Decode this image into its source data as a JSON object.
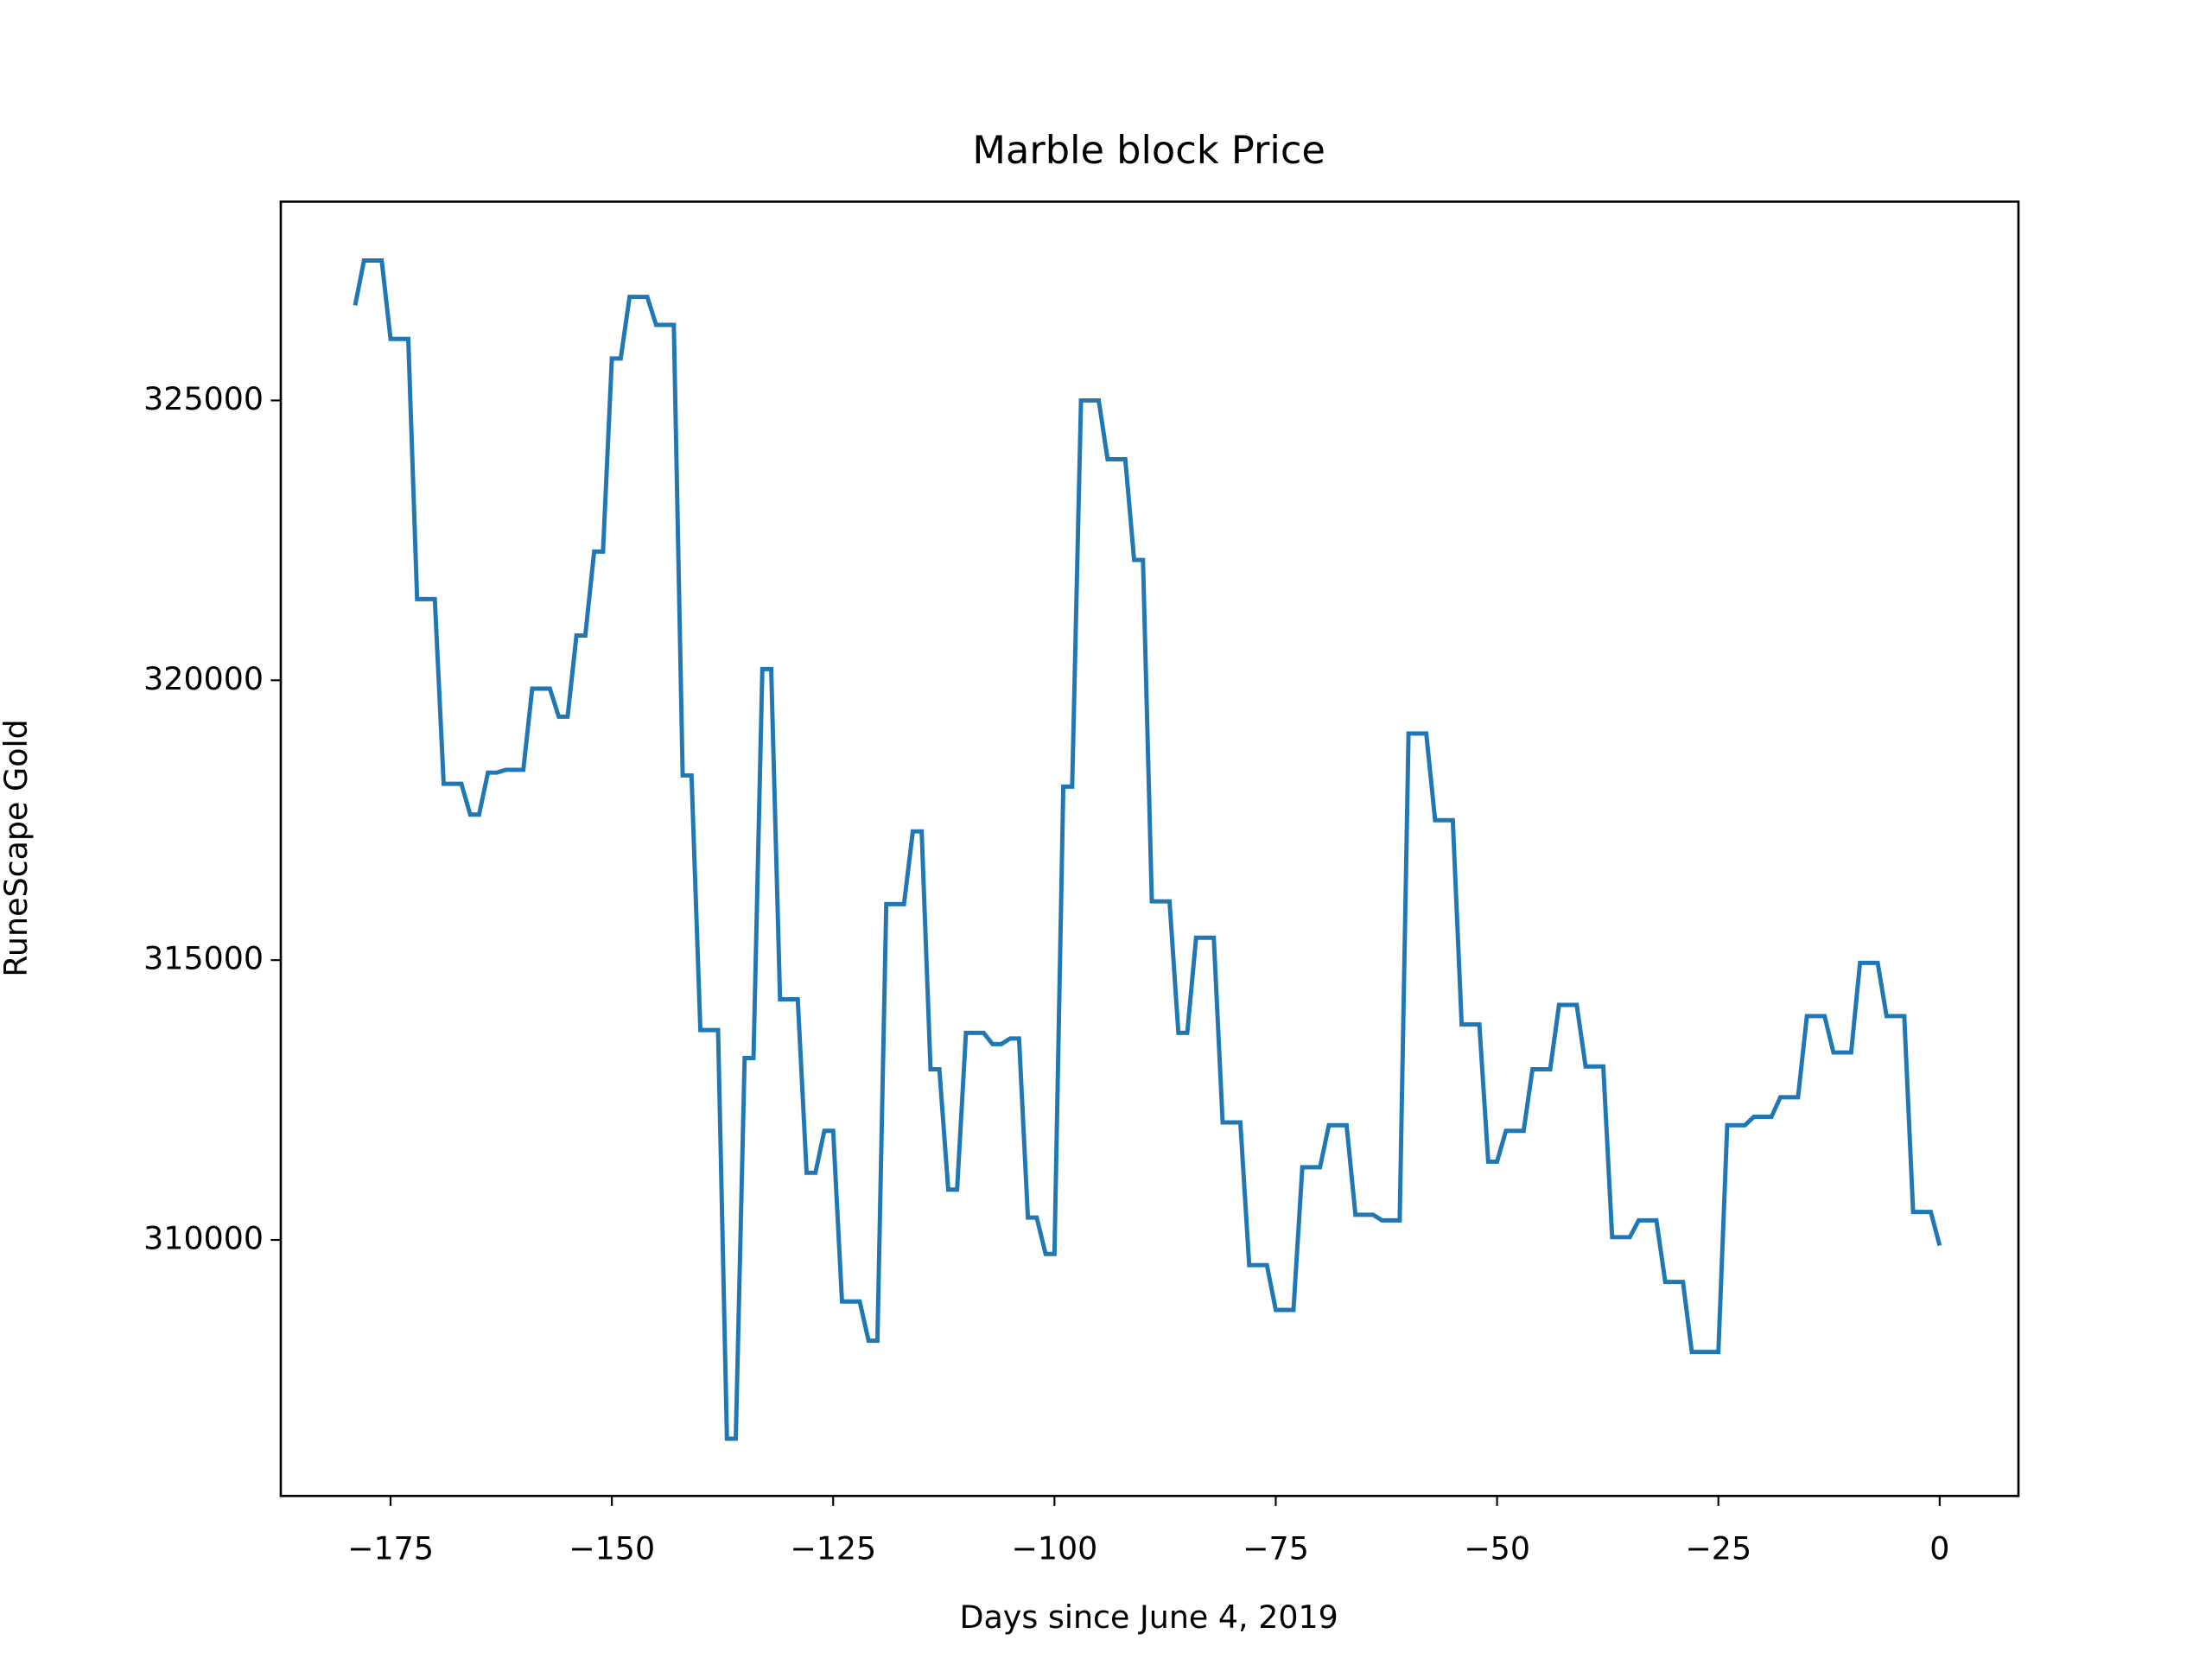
{
  "chart_data": {
    "type": "line",
    "title": "Marble block Price",
    "x_label": "Days since June 4, 2019",
    "y_label": "RuneScape Gold",
    "x": [
      -179,
      -178,
      -176,
      -175,
      -173,
      -172,
      -170,
      -169,
      -167,
      -166,
      -165,
      -164,
      -163,
      -162,
      -160,
      -159,
      -157,
      -156,
      -155,
      -154,
      -153,
      -152,
      -151,
      -150,
      -149,
      -148,
      -146,
      -145,
      -143,
      -142,
      -141,
      -140,
      -138,
      -137,
      -136,
      -135,
      -134,
      -133,
      -132,
      -131,
      -129,
      -128,
      -127,
      -126,
      -125,
      -124,
      -122,
      -121,
      -120,
      -119,
      -117,
      -116,
      -115,
      -114,
      -113,
      -112,
      -111,
      -110,
      -108,
      -107,
      -106,
      -105,
      -104,
      -103,
      -102,
      -101,
      -100,
      -99,
      -98,
      -97,
      -95,
      -94,
      -92,
      -91,
      -90,
      -89,
      -87,
      -86,
      -85,
      -84,
      -82,
      -81,
      -79,
      -78,
      -76,
      -75,
      -73,
      -72,
      -70,
      -69,
      -67,
      -66,
      -64,
      -63,
      -61,
      -60,
      -58,
      -57,
      -55,
      -54,
      -52,
      -51,
      -50,
      -49,
      -47,
      -46,
      -44,
      -43,
      -41,
      -40,
      -38,
      -37,
      -35,
      -34,
      -32,
      -31,
      -29,
      -28,
      -25,
      -24,
      -22,
      -21,
      -19,
      -18,
      -16,
      -15,
      -13,
      -12,
      -10,
      -9,
      -7,
      -6,
      -4,
      -3,
      -1,
      0
    ],
    "series": [
      {
        "color": "#1f77b4",
        "values": [
          326700,
          327500,
          327500,
          326100,
          326100,
          321450,
          321450,
          318150,
          318150,
          317600,
          317600,
          318350,
          318350,
          318400,
          318400,
          319850,
          319850,
          319350,
          319350,
          320800,
          320800,
          322300,
          322300,
          325750,
          325750,
          326850,
          326850,
          326350,
          326350,
          318300,
          318300,
          313750,
          313750,
          306450,
          306450,
          313250,
          313250,
          320200,
          320200,
          314300,
          314300,
          311200,
          311200,
          311950,
          311950,
          308900,
          308900,
          308200,
          308200,
          316000,
          316000,
          317300,
          317300,
          313050,
          313050,
          310900,
          310900,
          313700,
          313700,
          313500,
          313500,
          313600,
          313600,
          310400,
          310400,
          309750,
          309750,
          318100,
          318100,
          325000,
          325000,
          323950,
          323950,
          322150,
          322150,
          316050,
          316050,
          313700,
          313700,
          315400,
          315400,
          312100,
          312100,
          309550,
          309550,
          308750,
          308750,
          311300,
          311300,
          312050,
          312050,
          310450,
          310450,
          310350,
          310350,
          319050,
          319050,
          317500,
          317500,
          313850,
          313850,
          311400,
          311400,
          311950,
          311950,
          313050,
          313050,
          314200,
          314200,
          313100,
          313100,
          310050,
          310050,
          310350,
          310350,
          309250,
          309250,
          308000,
          308000,
          312050,
          312050,
          312200,
          312200,
          312550,
          312550,
          314000,
          314000,
          313350,
          313350,
          314950,
          314950,
          314000,
          314000,
          310500,
          310500,
          309900
        ]
      }
    ],
    "xlim": [
      -187.4,
      8.9
    ],
    "ylim": [
      305426,
      328552
    ],
    "xticks": [
      {
        "value": -175,
        "label": "−175"
      },
      {
        "value": -150,
        "label": "−150"
      },
      {
        "value": -125,
        "label": "−125"
      },
      {
        "value": -100,
        "label": "−100"
      },
      {
        "value": -75,
        "label": "−75"
      },
      {
        "value": -50,
        "label": "−50"
      },
      {
        "value": -25,
        "label": "−25"
      },
      0
    ],
    "yticks": [
      310000,
      315000,
      320000,
      325000
    ]
  }
}
